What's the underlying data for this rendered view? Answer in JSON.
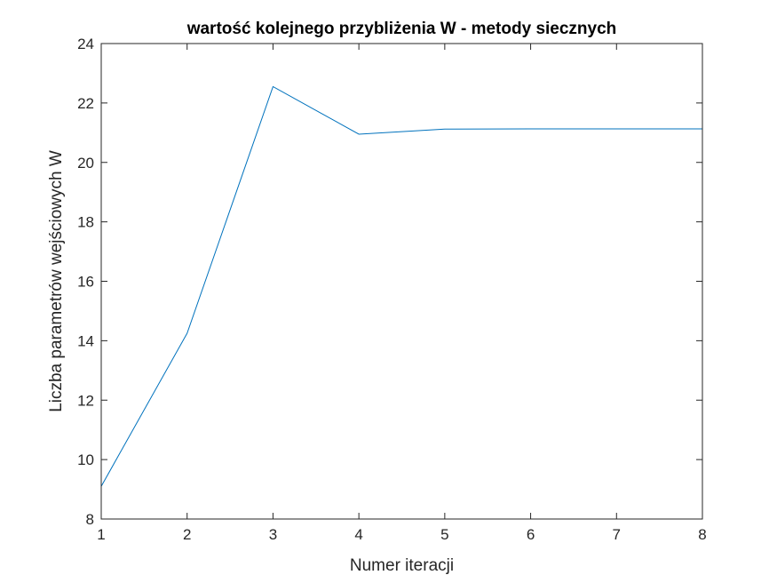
{
  "chart_data": {
    "type": "line",
    "title": "wartość kolejnego przybliżenia W - metody siecznych",
    "xlabel": "Numer iteracji",
    "ylabel": "Liczba parametrów wejściowych W",
    "xlim": [
      1,
      8
    ],
    "ylim": [
      8,
      24
    ],
    "xticks": [
      1,
      2,
      3,
      4,
      5,
      6,
      7,
      8
    ],
    "yticks": [
      8,
      10,
      12,
      14,
      16,
      18,
      20,
      22,
      24
    ],
    "grid": false,
    "series": [
      {
        "x": [
          1,
          2,
          3,
          4,
          5,
          6,
          7,
          8
        ],
        "values": [
          9.1,
          14.25,
          22.55,
          20.95,
          21.12,
          21.13,
          21.13,
          21.13
        ],
        "color": "#0072BD"
      }
    ]
  }
}
